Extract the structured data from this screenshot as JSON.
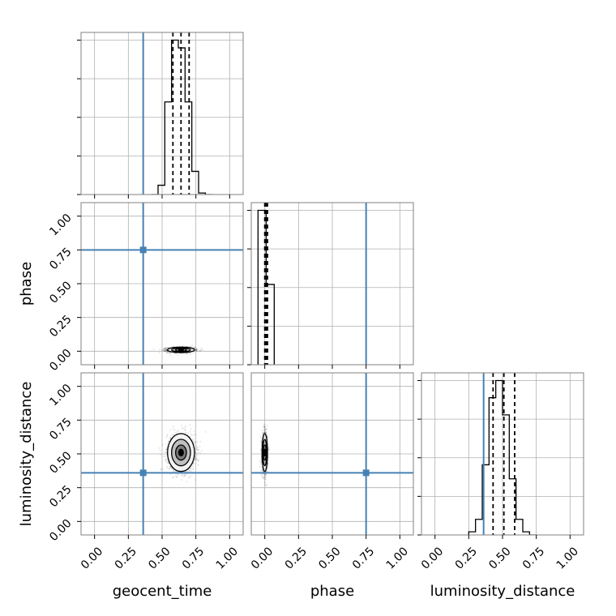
{
  "chart_data": {
    "type": "corner",
    "parameters": [
      "geocent_time",
      "phase",
      "luminosity_distance"
    ],
    "range": [
      -0.1,
      1.1
    ],
    "ticks": [
      0,
      0.25,
      0.5,
      0.75,
      1
    ],
    "tick_labels": [
      "0.00",
      "0.25",
      "0.50",
      "0.75",
      "1.00"
    ],
    "grid": true,
    "truths": [
      0.36,
      0.75,
      0.36
    ],
    "truth_color": "#4682b4",
    "quantiles": [
      [
        0.58,
        0.64,
        0.7
      ],
      [
        0.0,
        0.01,
        0.02
      ],
      [
        0.43,
        0.51,
        0.59
      ]
    ],
    "histograms": [
      {
        "bin_edges": [
          0.42,
          0.47,
          0.52,
          0.57,
          0.62,
          0.67,
          0.72,
          0.77,
          0.82,
          0.87
        ],
        "counts": [
          0,
          6,
          60,
          100,
          95,
          60,
          15,
          1,
          0
        ]
      },
      {
        "bin_edges": [
          -0.05,
          0.01,
          0.07
        ],
        "counts": [
          100,
          52
        ]
      },
      {
        "bin_edges": [
          0.25,
          0.3,
          0.35,
          0.4,
          0.45,
          0.5,
          0.55,
          0.6,
          0.65,
          0.7,
          0.75
        ],
        "counts": [
          2,
          10,
          45,
          88,
          99,
          77,
          36,
          10,
          2,
          0
        ]
      }
    ],
    "scatter_2d": [
      {
        "x": "geocent_time",
        "y": "phase",
        "center": [
          0.64,
          0.01
        ],
        "sigma": [
          0.05,
          0.01
        ]
      },
      {
        "x": "geocent_time",
        "y": "luminosity_distance",
        "center": [
          0.64,
          0.51
        ],
        "sigma": [
          0.05,
          0.07
        ]
      },
      {
        "x": "phase",
        "y": "luminosity_distance",
        "center": [
          0.0,
          0.51
        ],
        "sigma": [
          0.01,
          0.07
        ]
      }
    ],
    "colors": {
      "hist": "#000000",
      "truth": "#4682b4",
      "grid": "#b0b0b0",
      "scatter": "#000000"
    }
  }
}
